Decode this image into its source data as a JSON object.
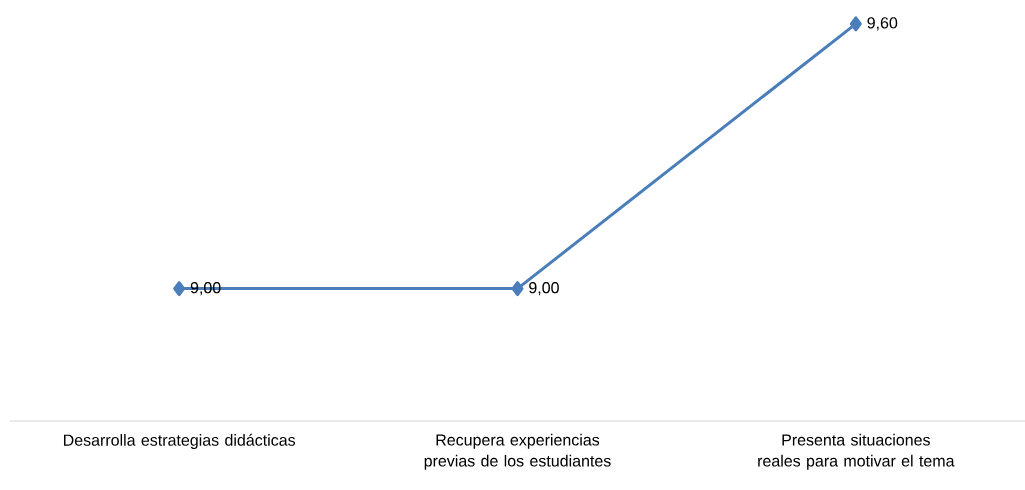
{
  "chart_data": {
    "type": "line",
    "categories": [
      "Desarrolla estrategias didácticas",
      "Recupera experiencias previas de los estudiantes",
      "Presenta situaciones reales para motivar el tema"
    ],
    "values": [
      9.0,
      9.0,
      9.6
    ],
    "value_labels": [
      "9,00",
      "9,00",
      "9,60"
    ],
    "color": "#4a7ebb",
    "marker": "diamond"
  }
}
